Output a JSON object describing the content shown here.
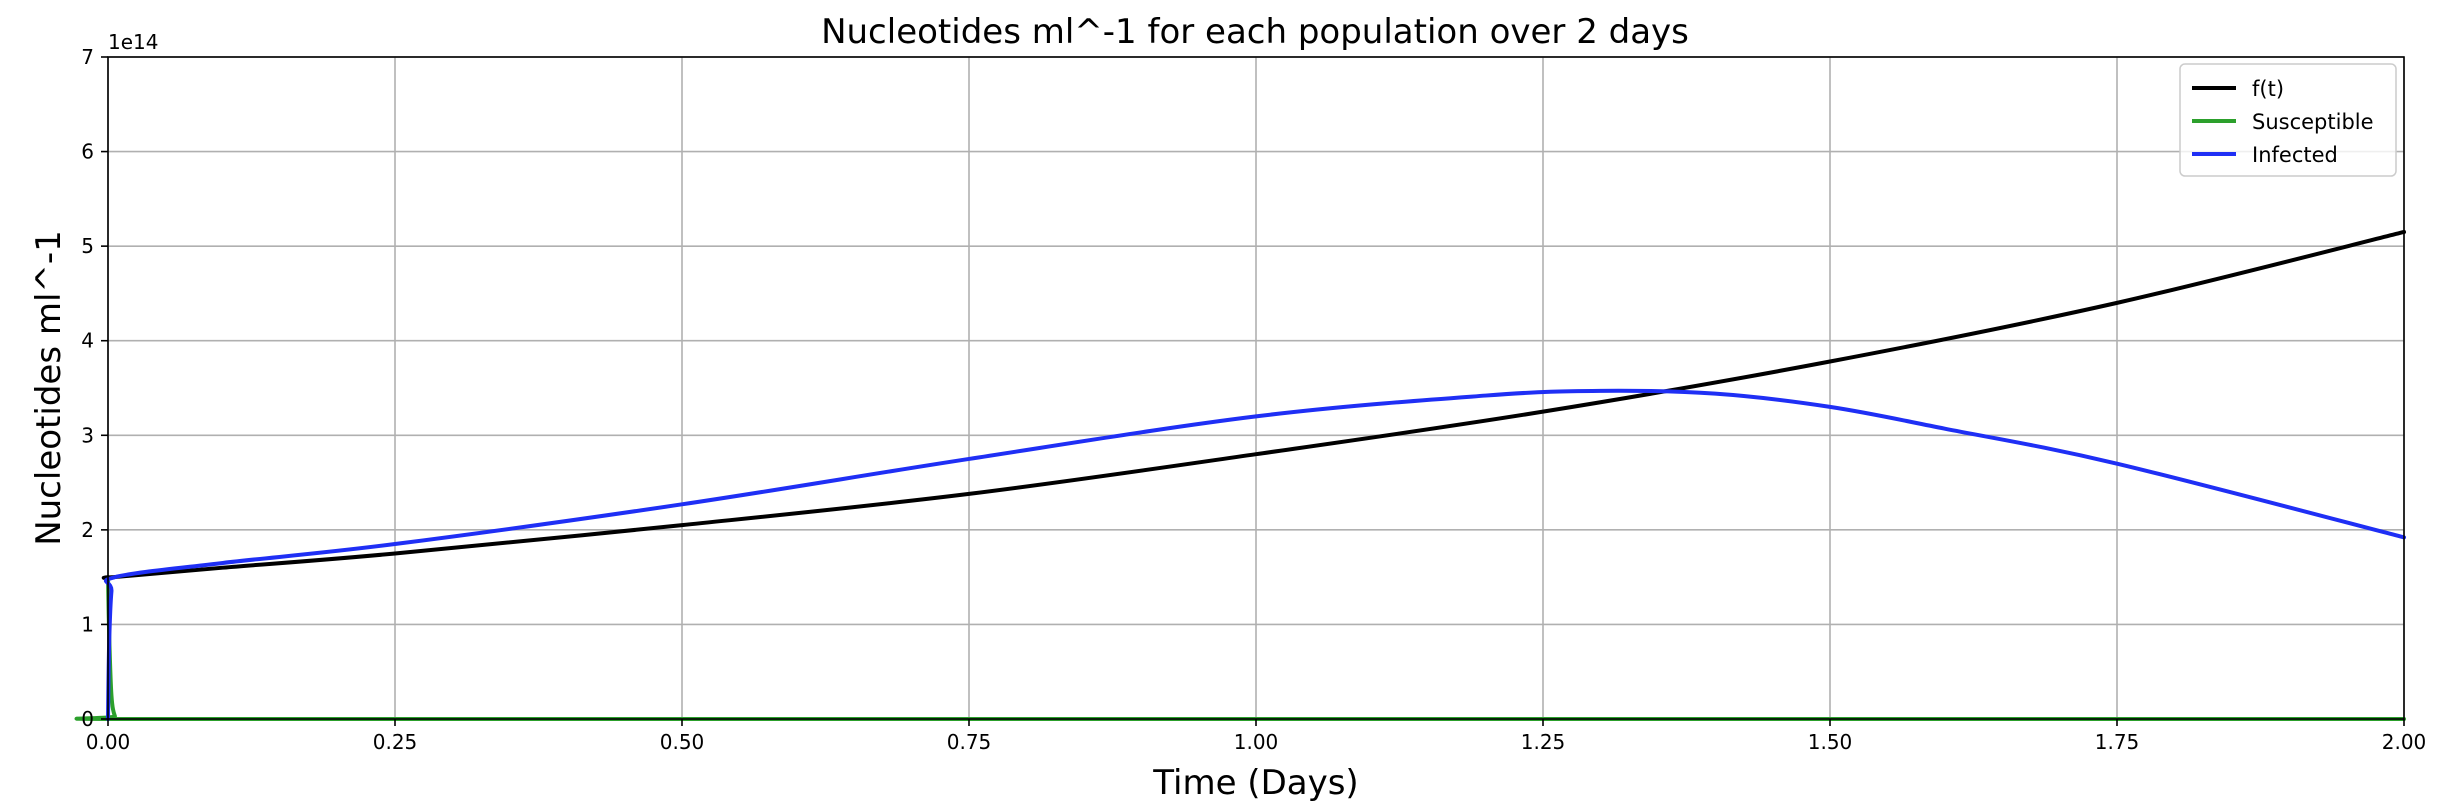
{
  "chart_data": {
    "type": "line",
    "title": "Nucleotides ml^-1 for each population over 2 days",
    "xlabel": "Time (Days)",
    "ylabel": "Nucleotides ml^-1",
    "xlim": [
      0,
      2
    ],
    "ylim": [
      0,
      7
    ],
    "y_offset_label": "1e14",
    "x_ticks": [
      0,
      0.25,
      0.5,
      0.75,
      1.0,
      1.25,
      1.5,
      1.75,
      2.0
    ],
    "x_tick_labels": [
      "0.00",
      "0.25",
      "0.50",
      "0.75",
      "1.00",
      "1.25",
      "1.50",
      "1.75",
      "2.00"
    ],
    "y_ticks": [
      0,
      1,
      2,
      3,
      4,
      5,
      6,
      7
    ],
    "y_tick_labels": [
      "0",
      "1",
      "2",
      "3",
      "4",
      "5",
      "6",
      "7"
    ],
    "grid": true,
    "legend_position": "top-right",
    "series": [
      {
        "name": "f(t)",
        "color": "#000000",
        "x": [
          0,
          0.005,
          0.1,
          0.25,
          0.5,
          0.75,
          1.0,
          1.25,
          1.5,
          1.75,
          2.0
        ],
        "values": [
          1.5,
          1.5,
          1.6,
          1.75,
          2.05,
          2.38,
          2.8,
          3.25,
          3.78,
          4.4,
          5.15
        ]
      },
      {
        "name": "Susceptible",
        "color": "#2ca02c",
        "x": [
          0,
          0.001,
          0.003,
          0.006,
          0.01,
          0.5,
          1.0,
          1.5,
          2.0
        ],
        "values": [
          1.5,
          0.9,
          0.25,
          0.03,
          0.0,
          0.0,
          0.0,
          0.0,
          0.0
        ]
      },
      {
        "name": "Infected",
        "color": "#1f2ff5",
        "x": [
          0,
          0.001,
          0.003,
          0.006,
          0.1,
          0.25,
          0.5,
          0.75,
          1.0,
          1.2,
          1.3,
          1.4,
          1.5,
          1.6,
          1.75,
          2.0
        ],
        "values": [
          0.0,
          0.8,
          1.35,
          1.5,
          1.65,
          1.85,
          2.27,
          2.75,
          3.2,
          3.42,
          3.47,
          3.44,
          3.3,
          3.07,
          2.7,
          1.92
        ]
      }
    ]
  }
}
